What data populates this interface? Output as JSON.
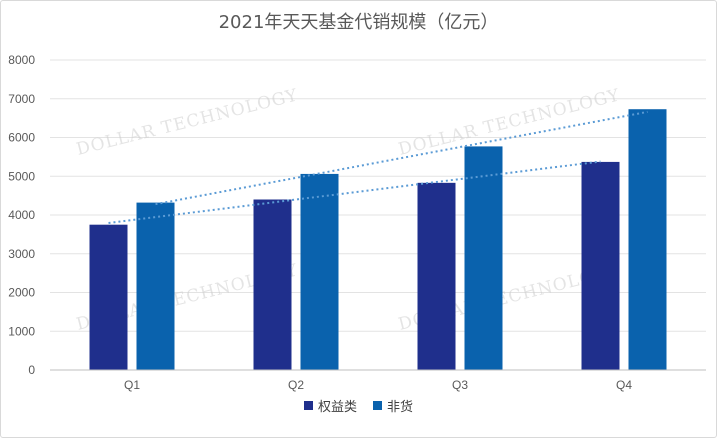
{
  "chart_data": {
    "type": "bar",
    "title": "2021年天天基金代销规模（亿元）",
    "categories": [
      "Q1",
      "Q2",
      "Q3",
      "Q4"
    ],
    "series": [
      {
        "name": "权益类",
        "values": [
          3750,
          4400,
          4830,
          5370
        ],
        "color": "#1f2f8c"
      },
      {
        "name": "非货",
        "values": [
          4320,
          5060,
          5770,
          6730
        ],
        "color": "#0a62ad"
      }
    ],
    "ylim": [
      0,
      8000
    ],
    "yticks": [
      0,
      1000,
      2000,
      3000,
      4000,
      5000,
      6000,
      7000,
      8000
    ],
    "grid": true,
    "legend_position": "bottom",
    "trendlines": true,
    "trendline_color": "#5b9bd5"
  },
  "watermark": "DOLLAR TECHNOLOGY"
}
